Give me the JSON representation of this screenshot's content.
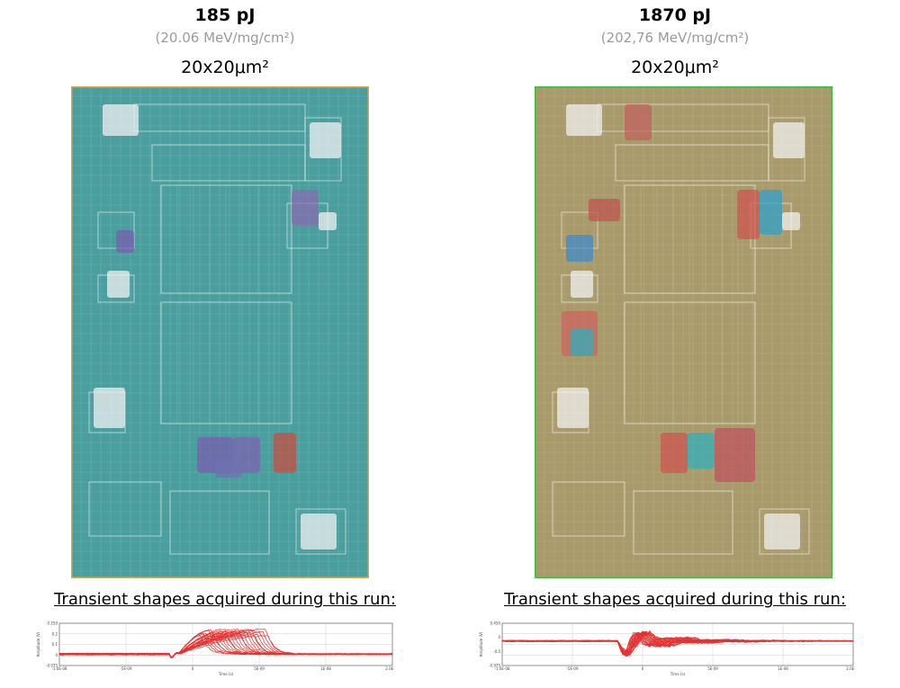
{
  "panels": [
    {
      "energy": "185 pJ",
      "let": "(20.06 MeV/mg/cm²)",
      "spot": "20x20μm²",
      "map_base_color": "#4a9e9e",
      "transient_label": "Transient shapes acquired during this run:",
      "scope": {
        "y_ticks": [
          "0.250",
          "0.2",
          "0.1",
          "0",
          "-0.075"
        ],
        "x_ticks": [
          "-1.0E-08",
          "-5E-09",
          "0",
          "5E-09",
          "1E-08",
          "2.0E-08"
        ],
        "y_label": "Amplitude (V)",
        "x_label": "Time (s)"
      }
    },
    {
      "energy": "1870 pJ",
      "let": "(202,76 MeV/mg/cm²)",
      "spot": "20x20μm²",
      "map_base_color": "#a89a6a",
      "transient_label": "Transient shapes acquired during this run:",
      "scope": {
        "y_ticks": [
          "0.450",
          "0",
          "-0.5",
          "-0.975"
        ],
        "x_ticks": [
          "-1.0E-08",
          "-5E-09",
          "0",
          "5E-09",
          "1E-08",
          "2.0E-08"
        ],
        "y_label": "Amplitude (V)",
        "x_label": "Time (s)"
      }
    }
  ]
}
